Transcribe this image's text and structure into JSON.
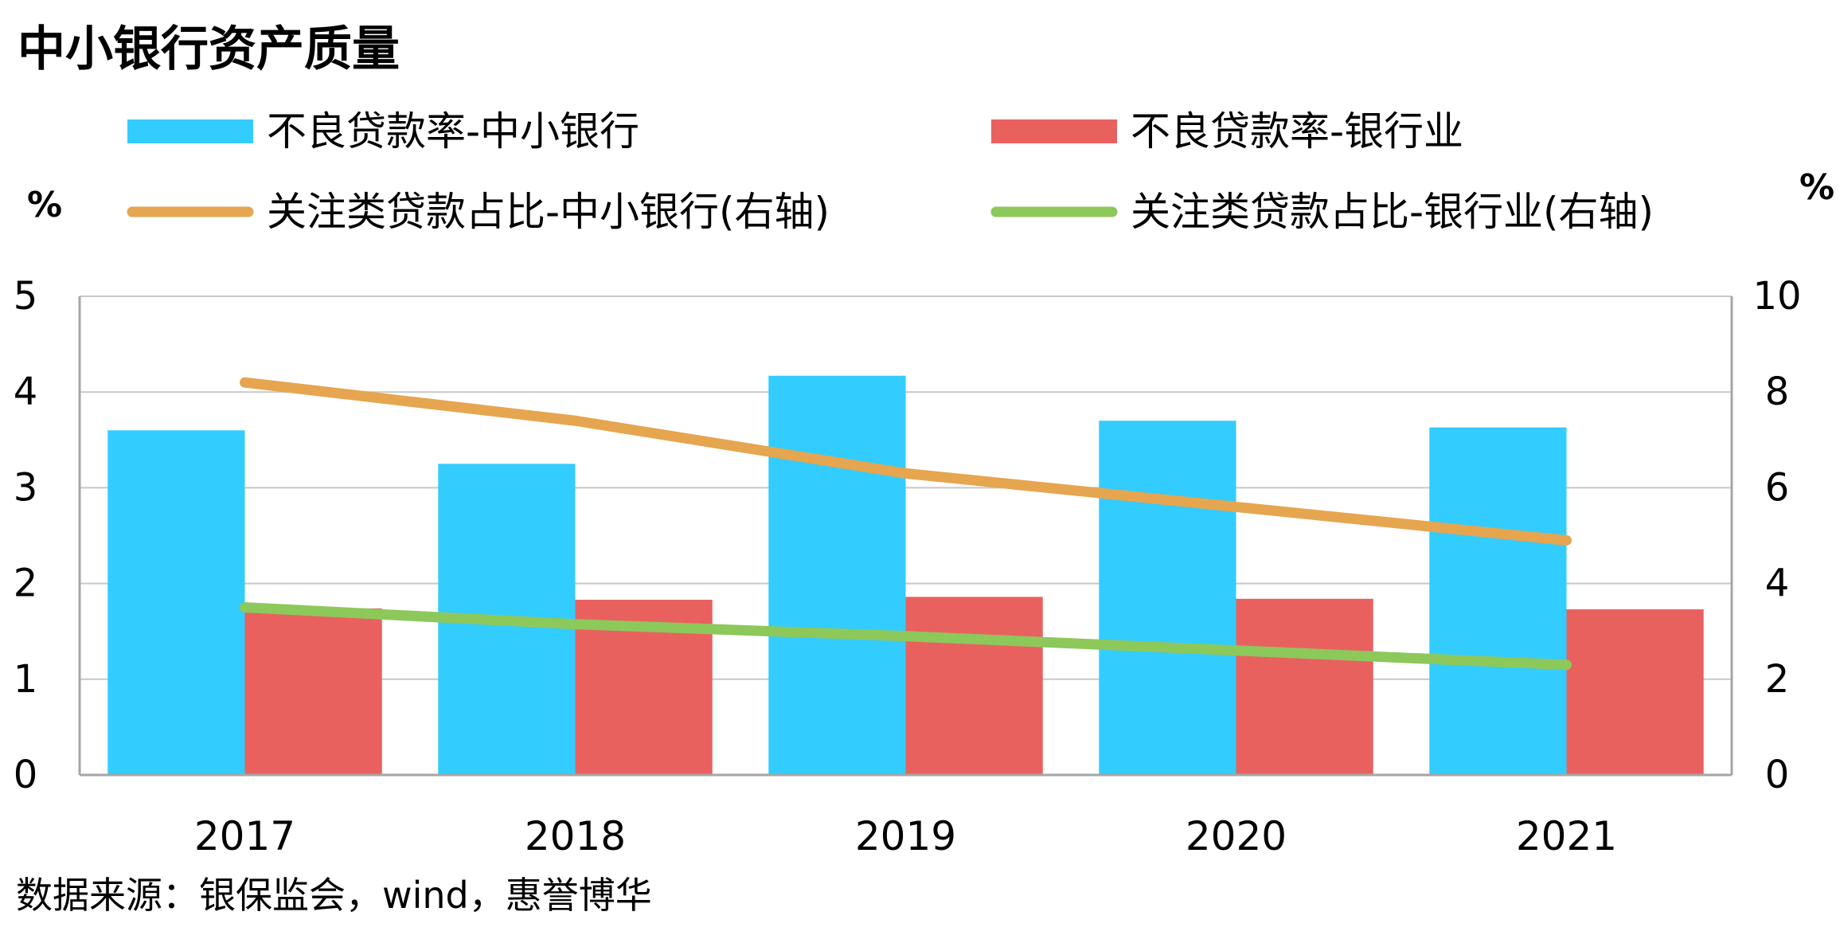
{
  "title": "中小银行资产质量",
  "source": "数据来源：银保监会，wind，惠誉博华",
  "left_axis_unit": "%",
  "right_axis_unit": "%",
  "colors": {
    "bar_small_banks": "#33CCFF",
    "bar_industry": "#E9615E",
    "line_small_banks": "#E6A54F",
    "line_industry": "#8DC85B",
    "grid": "#C8C8C8",
    "axis": "#A6A6A6"
  },
  "chart_data": {
    "type": "bar",
    "categories": [
      "2017",
      "2018",
      "2019",
      "2020",
      "2021"
    ],
    "series": [
      {
        "name": "不良贷款率-中小银行",
        "type": "bar",
        "axis": "left",
        "values": [
          3.6,
          3.25,
          4.17,
          3.7,
          3.63
        ]
      },
      {
        "name": "不良贷款率-银行业",
        "type": "bar",
        "axis": "left",
        "values": [
          1.74,
          1.83,
          1.86,
          1.84,
          1.73
        ]
      },
      {
        "name": "关注类贷款占比-中小银行(右轴)",
        "type": "line",
        "axis": "right",
        "values": [
          8.2,
          7.4,
          6.3,
          5.6,
          4.9
        ]
      },
      {
        "name": "关注类贷款占比-银行业(右轴)",
        "type": "line",
        "axis": "right",
        "values": [
          3.5,
          3.15,
          2.9,
          2.6,
          2.3
        ]
      }
    ],
    "ylim_left": [
      0,
      5
    ],
    "ylim_right": [
      0,
      10
    ],
    "yticks_left": [
      "0",
      "1",
      "2",
      "3",
      "4",
      "5"
    ],
    "yticks_right": [
      "0",
      "2",
      "4",
      "6",
      "8",
      "10"
    ],
    "grid": true,
    "legend_position": "top"
  }
}
